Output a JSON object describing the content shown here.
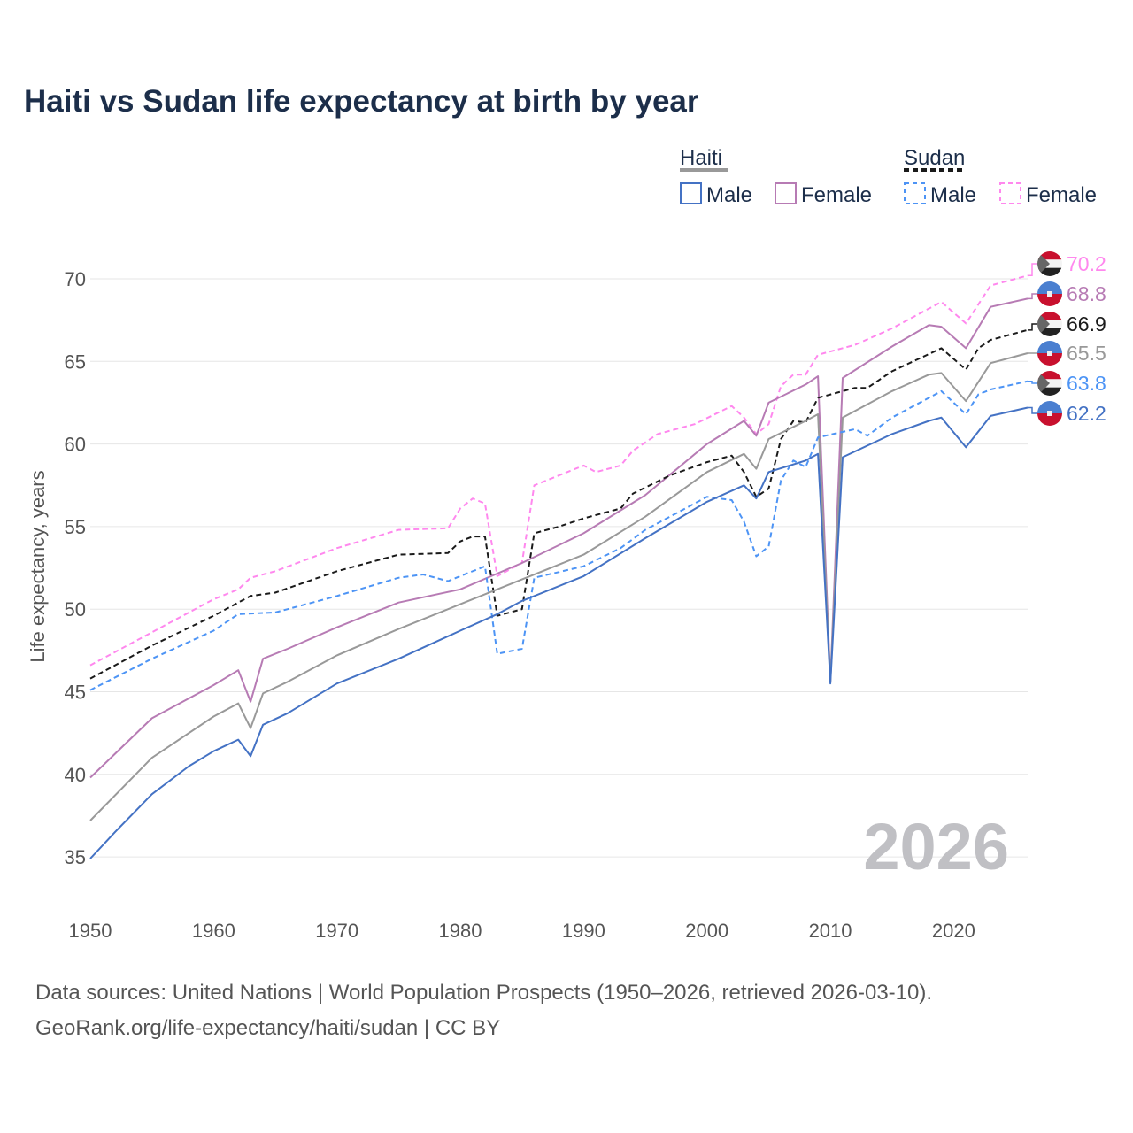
{
  "chart_data": {
    "type": "line",
    "title": "Haiti vs Sudan life expectancy at birth by year",
    "xlabel": "",
    "ylabel": "Life expectancy, years",
    "xlim": [
      1950,
      2026
    ],
    "ylim": [
      33,
      72
    ],
    "x_ticks": [
      1950,
      1960,
      1970,
      1980,
      1990,
      2000,
      2010,
      2020
    ],
    "y_ticks": [
      35,
      40,
      45,
      50,
      55,
      60,
      65,
      70
    ],
    "grid": true,
    "current_year_label": "2026",
    "legend": {
      "placement": "top-right",
      "groups": [
        {
          "name": "Haiti",
          "items": [
            "Male",
            "Female"
          ]
        },
        {
          "name": "Sudan",
          "items": [
            "Male",
            "Female"
          ]
        }
      ]
    },
    "series": [
      {
        "name": "Sudan Female",
        "country": "Sudan",
        "color": "#ff88ee",
        "dashed": true,
        "end_label": "70.2",
        "points": [
          [
            1950,
            46.6
          ],
          [
            1955,
            48.6
          ],
          [
            1960,
            50.6
          ],
          [
            1962,
            51.2
          ],
          [
            1963,
            51.9
          ],
          [
            1965,
            52.3
          ],
          [
            1970,
            53.7
          ],
          [
            1975,
            54.8
          ],
          [
            1979,
            54.9
          ],
          [
            1980,
            56.1
          ],
          [
            1981,
            56.7
          ],
          [
            1982,
            56.4
          ],
          [
            1983,
            52.0
          ],
          [
            1985,
            52.8
          ],
          [
            1986,
            57.5
          ],
          [
            1988,
            58.1
          ],
          [
            1990,
            58.7
          ],
          [
            1991,
            58.3
          ],
          [
            1993,
            58.7
          ],
          [
            1994,
            59.6
          ],
          [
            1996,
            60.6
          ],
          [
            1999,
            61.2
          ],
          [
            2002,
            62.3
          ],
          [
            2003,
            61.6
          ],
          [
            2004,
            60.6
          ],
          [
            2005,
            61.2
          ],
          [
            2006,
            63.5
          ],
          [
            2007,
            64.2
          ],
          [
            2008,
            64.2
          ],
          [
            2009,
            65.4
          ],
          [
            2012,
            66.0
          ],
          [
            2015,
            67.0
          ],
          [
            2019,
            68.6
          ],
          [
            2021,
            67.3
          ],
          [
            2023,
            69.6
          ],
          [
            2026,
            70.2
          ]
        ]
      },
      {
        "name": "Haiti Female",
        "country": "Haiti",
        "color": "#b77bb4",
        "dashed": false,
        "end_label": "68.8",
        "points": [
          [
            1950,
            39.8
          ],
          [
            1955,
            43.4
          ],
          [
            1960,
            45.4
          ],
          [
            1962,
            46.3
          ],
          [
            1963,
            44.4
          ],
          [
            1964,
            47.0
          ],
          [
            1966,
            47.6
          ],
          [
            1970,
            48.9
          ],
          [
            1975,
            50.4
          ],
          [
            1980,
            51.2
          ],
          [
            1985,
            52.8
          ],
          [
            1990,
            54.6
          ],
          [
            1995,
            56.9
          ],
          [
            2000,
            60.0
          ],
          [
            2003,
            61.4
          ],
          [
            2004,
            60.5
          ],
          [
            2005,
            62.5
          ],
          [
            2008,
            63.6
          ],
          [
            2009,
            64.1
          ],
          [
            2010,
            45.6
          ],
          [
            2011,
            64.0
          ],
          [
            2015,
            65.9
          ],
          [
            2018,
            67.2
          ],
          [
            2019,
            67.1
          ],
          [
            2021,
            65.8
          ],
          [
            2023,
            68.3
          ],
          [
            2026,
            68.8
          ]
        ]
      },
      {
        "name": "Sudan",
        "country": "Sudan",
        "color": "#1a1a1a",
        "dashed": true,
        "end_label": "66.9",
        "points": [
          [
            1950,
            45.8
          ],
          [
            1955,
            47.8
          ],
          [
            1960,
            49.6
          ],
          [
            1963,
            50.8
          ],
          [
            1965,
            51.0
          ],
          [
            1970,
            52.3
          ],
          [
            1975,
            53.3
          ],
          [
            1979,
            53.4
          ],
          [
            1980,
            54.1
          ],
          [
            1981,
            54.4
          ],
          [
            1982,
            54.4
          ],
          [
            1983,
            49.6
          ],
          [
            1985,
            50.0
          ],
          [
            1986,
            54.6
          ],
          [
            1988,
            55.0
          ],
          [
            1990,
            55.5
          ],
          [
            1993,
            56.1
          ],
          [
            1994,
            57.0
          ],
          [
            1997,
            58.1
          ],
          [
            2000,
            58.9
          ],
          [
            2002,
            59.3
          ],
          [
            2003,
            58.3
          ],
          [
            2004,
            56.8
          ],
          [
            2005,
            57.3
          ],
          [
            2006,
            60.3
          ],
          [
            2007,
            61.4
          ],
          [
            2008,
            61.3
          ],
          [
            2009,
            62.8
          ],
          [
            2012,
            63.4
          ],
          [
            2013,
            63.4
          ],
          [
            2015,
            64.4
          ],
          [
            2019,
            65.8
          ],
          [
            2021,
            64.5
          ],
          [
            2022,
            65.8
          ],
          [
            2023,
            66.3
          ],
          [
            2026,
            66.9
          ]
        ]
      },
      {
        "name": "Haiti",
        "country": "Haiti",
        "color": "#999999",
        "dashed": false,
        "end_label": "65.5",
        "points": [
          [
            1950,
            37.2
          ],
          [
            1955,
            41.0
          ],
          [
            1960,
            43.5
          ],
          [
            1962,
            44.3
          ],
          [
            1963,
            42.8
          ],
          [
            1964,
            44.9
          ],
          [
            1966,
            45.6
          ],
          [
            1970,
            47.2
          ],
          [
            1975,
            48.8
          ],
          [
            1980,
            50.3
          ],
          [
            1985,
            51.8
          ],
          [
            1990,
            53.3
          ],
          [
            1995,
            55.6
          ],
          [
            2000,
            58.3
          ],
          [
            2003,
            59.4
          ],
          [
            2004,
            58.5
          ],
          [
            2005,
            60.3
          ],
          [
            2008,
            61.4
          ],
          [
            2009,
            61.8
          ],
          [
            2010,
            45.6
          ],
          [
            2011,
            61.6
          ],
          [
            2015,
            63.2
          ],
          [
            2018,
            64.2
          ],
          [
            2019,
            64.3
          ],
          [
            2021,
            62.6
          ],
          [
            2023,
            64.9
          ],
          [
            2026,
            65.5
          ]
        ]
      },
      {
        "name": "Sudan Male",
        "country": "Sudan",
        "color": "#4d94f5",
        "dashed": true,
        "end_label": "63.8",
        "points": [
          [
            1950,
            45.1
          ],
          [
            1955,
            47.0
          ],
          [
            1960,
            48.7
          ],
          [
            1962,
            49.7
          ],
          [
            1965,
            49.8
          ],
          [
            1970,
            50.8
          ],
          [
            1975,
            51.9
          ],
          [
            1977,
            52.1
          ],
          [
            1979,
            51.7
          ],
          [
            1982,
            52.6
          ],
          [
            1983,
            47.3
          ],
          [
            1985,
            47.6
          ],
          [
            1986,
            51.9
          ],
          [
            1990,
            52.6
          ],
          [
            1993,
            53.7
          ],
          [
            1995,
            54.8
          ],
          [
            2000,
            56.8
          ],
          [
            2002,
            56.6
          ],
          [
            2003,
            55.3
          ],
          [
            2004,
            53.2
          ],
          [
            2005,
            53.8
          ],
          [
            2006,
            57.8
          ],
          [
            2007,
            59.0
          ],
          [
            2008,
            58.6
          ],
          [
            2009,
            60.4
          ],
          [
            2012,
            60.9
          ],
          [
            2013,
            60.5
          ],
          [
            2015,
            61.6
          ],
          [
            2019,
            63.2
          ],
          [
            2021,
            61.8
          ],
          [
            2022,
            63.0
          ],
          [
            2023,
            63.3
          ],
          [
            2026,
            63.8
          ]
        ]
      },
      {
        "name": "Haiti Male",
        "country": "Haiti",
        "color": "#4472c4",
        "dashed": false,
        "end_label": "62.2",
        "points": [
          [
            1950,
            34.9
          ],
          [
            1952,
            36.5
          ],
          [
            1955,
            38.8
          ],
          [
            1958,
            40.5
          ],
          [
            1960,
            41.4
          ],
          [
            1962,
            42.1
          ],
          [
            1963,
            41.1
          ],
          [
            1964,
            43.0
          ],
          [
            1966,
            43.7
          ],
          [
            1970,
            45.5
          ],
          [
            1975,
            47.0
          ],
          [
            1980,
            48.7
          ],
          [
            1983,
            49.7
          ],
          [
            1985,
            50.5
          ],
          [
            1990,
            52.0
          ],
          [
            1995,
            54.3
          ],
          [
            2000,
            56.5
          ],
          [
            2003,
            57.5
          ],
          [
            2004,
            56.7
          ],
          [
            2005,
            58.3
          ],
          [
            2008,
            59.0
          ],
          [
            2009,
            59.4
          ],
          [
            2010,
            45.5
          ],
          [
            2011,
            59.2
          ],
          [
            2015,
            60.6
          ],
          [
            2018,
            61.4
          ],
          [
            2019,
            61.6
          ],
          [
            2021,
            59.8
          ],
          [
            2023,
            61.7
          ],
          [
            2026,
            62.2
          ]
        ]
      }
    ]
  },
  "sources": {
    "line1": "Data sources: United Nations | World Population Prospects (1950–2026, retrieved 2026-03-10).",
    "line2": "GeoRank.org/life-expectancy/haiti/sudan | CC BY"
  }
}
